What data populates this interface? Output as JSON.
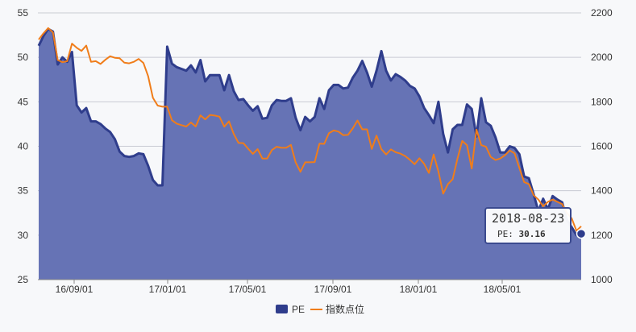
{
  "chart_data": {
    "type": "area",
    "x_ticks": [
      "16/09/01",
      "17/01/01",
      "17/05/01",
      "17/09/01",
      "18/01/01",
      "18/05/01"
    ],
    "y_left": {
      "min": 25,
      "max": 55,
      "ticks": [
        25,
        30,
        35,
        40,
        45,
        50,
        55
      ]
    },
    "y_right": {
      "min": 1000,
      "max": 2200,
      "ticks": [
        1000,
        1200,
        1400,
        1600,
        1800,
        2000,
        2200
      ]
    },
    "grid": true,
    "legend_position": "bottom-center",
    "series": [
      {
        "name": "PE",
        "axis": "left",
        "style": "area",
        "color": "#2f3d8c",
        "fill": "#6673b5",
        "values": [
          51.3,
          52.4,
          53.2,
          52.9,
          49.2,
          50.0,
          49.5,
          50.6,
          44.6,
          43.8,
          44.3,
          42.8,
          42.8,
          42.5,
          42.0,
          41.6,
          40.8,
          39.4,
          38.9,
          38.8,
          38.9,
          39.2,
          39.1,
          37.8,
          36.2,
          35.6,
          35.6,
          51.2,
          49.3,
          48.9,
          48.7,
          48.5,
          49.1,
          48.3,
          49.7,
          47.3,
          48.0,
          48.0,
          48.0,
          46.3,
          48.0,
          46.2,
          45.2,
          45.3,
          44.6,
          44.0,
          44.5,
          43.1,
          43.2,
          44.6,
          45.2,
          45.1,
          45.1,
          45.4,
          43.2,
          41.8,
          43.3,
          42.8,
          43.3,
          45.4,
          44.2,
          46.3,
          46.9,
          46.9,
          46.5,
          46.6,
          47.7,
          48.5,
          49.6,
          48.3,
          46.7,
          48.5,
          50.7,
          48.5,
          47.4,
          48.1,
          47.8,
          47.4,
          46.8,
          46.5,
          45.6,
          44.3,
          43.5,
          42.6,
          45.0,
          41.4,
          39.3,
          41.9,
          42.4,
          42.4,
          44.7,
          44.2,
          41.1,
          45.4,
          42.7,
          42.3,
          41.0,
          39.3,
          39.3,
          40.0,
          39.8,
          39.1,
          36.6,
          36.4,
          34.6,
          32.7,
          34.1,
          32.9,
          34.4,
          34.0,
          33.7,
          31.7,
          30.9,
          30.0,
          30.16
        ]
      },
      {
        "name": "指数点位",
        "axis": "right",
        "style": "line",
        "color": "#f07d1a",
        "values": [
          2080,
          2108,
          2132,
          2112,
          1988,
          1978,
          1983,
          2062,
          2043,
          2029,
          2053,
          1980,
          1983,
          1970,
          1989,
          2005,
          1998,
          1996,
          1976,
          1973,
          1980,
          1993,
          1975,
          1915,
          1818,
          1783,
          1778,
          1778,
          1717,
          1702,
          1695,
          1689,
          1707,
          1689,
          1739,
          1721,
          1741,
          1738,
          1733,
          1688,
          1712,
          1655,
          1615,
          1614,
          1589,
          1566,
          1587,
          1545,
          1545,
          1583,
          1598,
          1593,
          1593,
          1606,
          1527,
          1485,
          1528,
          1528,
          1529,
          1612,
          1611,
          1659,
          1671,
          1666,
          1650,
          1651,
          1680,
          1716,
          1676,
          1676,
          1588,
          1648,
          1587,
          1563,
          1586,
          1573,
          1567,
          1556,
          1539,
          1519,
          1546,
          1521,
          1480,
          1563,
          1486,
          1387,
          1430,
          1452,
          1544,
          1624,
          1605,
          1500,
          1675,
          1605,
          1598,
          1552,
          1538,
          1545,
          1560,
          1581,
          1568,
          1503,
          1439,
          1430,
          1380,
          1360,
          1330,
          1350,
          1360,
          1350,
          1340,
          1300,
          1276,
          1220,
          1240
        ]
      }
    ]
  },
  "legend": {
    "pe_label": "PE",
    "index_label": "指数点位"
  },
  "tooltip": {
    "date": "2018-08-23",
    "label": "PE:",
    "value": "30.16"
  }
}
